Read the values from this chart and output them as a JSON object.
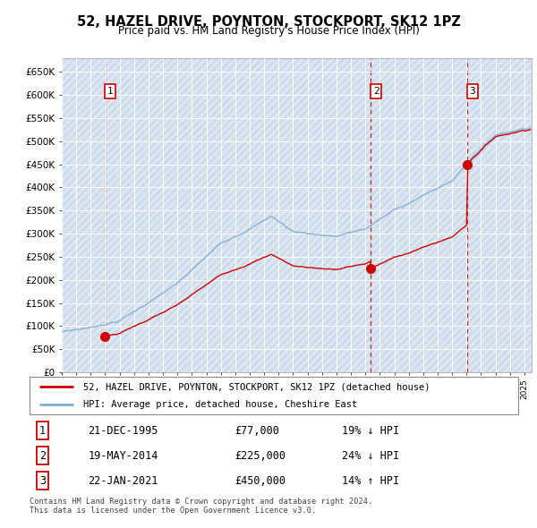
{
  "title": "52, HAZEL DRIVE, POYNTON, STOCKPORT, SK12 1PZ",
  "subtitle": "Price paid vs. HM Land Registry's House Price Index (HPI)",
  "xlim_start": 1993.0,
  "xlim_end": 2025.5,
  "ylim_min": 0,
  "ylim_max": 680000,
  "yticks": [
    0,
    50000,
    100000,
    150000,
    200000,
    250000,
    300000,
    350000,
    400000,
    450000,
    500000,
    550000,
    600000,
    650000
  ],
  "ytick_labels": [
    "£0",
    "£50K",
    "£100K",
    "£150K",
    "£200K",
    "£250K",
    "£300K",
    "£350K",
    "£400K",
    "£450K",
    "£500K",
    "£550K",
    "£600K",
    "£650K"
  ],
  "background_color": "#dce6f1",
  "hatch_color": "#c5d3e8",
  "grid_color": "#ffffff",
  "sale_dates": [
    1995.97,
    2014.38,
    2021.06
  ],
  "sale_prices": [
    77000,
    225000,
    450000
  ],
  "sale_labels": [
    "1",
    "2",
    "3"
  ],
  "sale_color": "#cc0000",
  "hpi_color": "#7aadd4",
  "legend_label_property": "52, HAZEL DRIVE, POYNTON, STOCKPORT, SK12 1PZ (detached house)",
  "legend_label_hpi": "HPI: Average price, detached house, Cheshire East",
  "table_entries": [
    {
      "num": "1",
      "date": "21-DEC-1995",
      "price": "£77,000",
      "hpi": "19% ↓ HPI"
    },
    {
      "num": "2",
      "date": "19-MAY-2014",
      "price": "£225,000",
      "hpi": "24% ↓ HPI"
    },
    {
      "num": "3",
      "date": "22-JAN-2021",
      "price": "£450,000",
      "hpi": "14% ↑ HPI"
    }
  ],
  "footer_text": "Contains HM Land Registry data © Crown copyright and database right 2024.\nThis data is licensed under the Open Government Licence v3.0.",
  "xticks": [
    1993,
    1994,
    1995,
    1996,
    1997,
    1998,
    1999,
    2000,
    2001,
    2002,
    2003,
    2004,
    2005,
    2006,
    2007,
    2008,
    2009,
    2010,
    2011,
    2012,
    2013,
    2014,
    2015,
    2016,
    2017,
    2018,
    2019,
    2020,
    2021,
    2022,
    2023,
    2024,
    2025
  ]
}
